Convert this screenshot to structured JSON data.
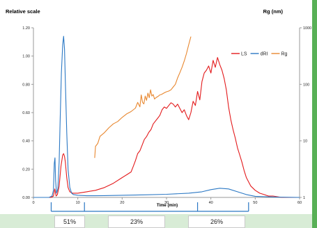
{
  "chart_data": {
    "type": "line",
    "title": "",
    "ylabel_left": "Relative scale",
    "ylabel_right": "Rg (nm)",
    "xlabel": "Time (min)",
    "xlim": [
      0,
      60
    ],
    "ylim": [
      0,
      1.2
    ],
    "y2lim": [
      1,
      1000
    ],
    "y2scale": "log",
    "x_ticks": [
      "0",
      "10",
      "20",
      "30",
      "40",
      "50",
      "60"
    ],
    "y_ticks": [
      "0.00",
      "0.20",
      "0.40",
      "0.60",
      "0.80",
      "1.00",
      "1.20"
    ],
    "y2_ticks": [
      "1",
      "10",
      "100",
      "1000"
    ],
    "grid": false,
    "legend_position": "top-right",
    "colors": {
      "LS": "#e31a1c",
      "dRI": "#2b78c4",
      "Rg": "#e8872f",
      "bracket": "#2b78c4"
    },
    "series": [
      {
        "name": "LS",
        "axis": "left",
        "x": [
          0,
          4,
          4.5,
          4.8,
          5.1,
          5.4,
          5.8,
          6.2,
          6.6,
          6.8,
          7.0,
          7.2,
          7.5,
          7.8,
          8.2,
          8.8,
          10,
          12,
          14,
          16,
          18,
          20,
          21,
          22,
          22.5,
          23,
          23.5,
          24,
          24.5,
          25,
          25.5,
          26,
          26.5,
          27,
          27.5,
          28,
          28.5,
          29,
          29.5,
          30,
          30.5,
          31,
          31.5,
          32,
          32.5,
          33,
          33.5,
          34,
          34.5,
          35,
          35.5,
          36,
          36.5,
          37,
          37.5,
          38,
          38.5,
          39,
          39.5,
          40,
          40.5,
          41,
          41.5,
          42,
          42.5,
          43,
          43.5,
          44,
          44.5,
          45,
          45.5,
          46,
          46.5,
          47,
          47.5,
          48,
          48.5,
          49,
          50,
          51,
          52,
          53,
          54,
          55,
          56,
          58,
          60
        ],
        "y": [
          0,
          0,
          0.01,
          0.06,
          0.01,
          0.02,
          0.08,
          0.22,
          0.3,
          0.31,
          0.29,
          0.25,
          0.14,
          0.07,
          0.04,
          0.03,
          0.03,
          0.04,
          0.05,
          0.07,
          0.1,
          0.14,
          0.16,
          0.18,
          0.22,
          0.26,
          0.31,
          0.33,
          0.37,
          0.41,
          0.43,
          0.46,
          0.48,
          0.52,
          0.54,
          0.56,
          0.58,
          0.62,
          0.64,
          0.63,
          0.65,
          0.67,
          0.66,
          0.64,
          0.66,
          0.63,
          0.6,
          0.62,
          0.58,
          0.55,
          0.6,
          0.68,
          0.65,
          0.75,
          0.69,
          0.82,
          0.88,
          0.9,
          0.93,
          0.88,
          0.97,
          0.92,
          0.99,
          0.94,
          0.9,
          0.84,
          0.76,
          0.64,
          0.55,
          0.48,
          0.42,
          0.35,
          0.3,
          0.25,
          0.19,
          0.14,
          0.11,
          0.08,
          0.05,
          0.03,
          0.02,
          0.01,
          0.01,
          0.005,
          0,
          0,
          0
        ]
      },
      {
        "name": "dRI",
        "axis": "left",
        "x": [
          0,
          3.5,
          4.2,
          4.5,
          4.7,
          4.85,
          5.0,
          5.2,
          5.5,
          5.8,
          6.0,
          6.3,
          6.6,
          6.8,
          7.0,
          7.2,
          7.5,
          7.8,
          8.2,
          8.6,
          9,
          10,
          12,
          14,
          16,
          18,
          20,
          25,
          30,
          35,
          38,
          40,
          42,
          44,
          46,
          48,
          50,
          55,
          60
        ],
        "y": [
          0,
          0,
          0.01,
          0.05,
          0.24,
          0.28,
          0.12,
          0.03,
          0.06,
          0.25,
          0.52,
          0.88,
          1.08,
          1.14,
          1.05,
          0.82,
          0.46,
          0.2,
          0.07,
          0.03,
          0.02,
          0.015,
          0.012,
          0.012,
          0.013,
          0.014,
          0.015,
          0.018,
          0.022,
          0.03,
          0.04,
          0.055,
          0.065,
          0.06,
          0.04,
          0.02,
          0.008,
          0.002,
          0
        ]
      },
      {
        "name": "Rg",
        "axis": "right",
        "x": [
          13.8,
          14,
          14.5,
          15,
          16,
          17,
          18,
          19,
          20,
          21,
          22,
          23,
          23.5,
          24,
          24.3,
          24.6,
          24.9,
          25.2,
          25.5,
          25.8,
          26.1,
          26.4,
          26.7,
          27,
          27.3,
          27.6,
          27.9,
          28.2,
          28.5,
          28.8,
          29.1,
          29.4,
          29.7,
          30,
          30.5,
          31,
          31.5,
          32,
          32.5,
          33,
          33.5,
          34,
          34.5,
          35,
          35.5
        ],
        "y": [
          5,
          8,
          9,
          12,
          14,
          17,
          20,
          22,
          26,
          30,
          33,
          38,
          48,
          40,
          65,
          48,
          45,
          62,
          52,
          70,
          58,
          80,
          62,
          66,
          55,
          58,
          60,
          62,
          65,
          66,
          68,
          70,
          72,
          74,
          76,
          80,
          90,
          100,
          130,
          160,
          200,
          260,
          350,
          500,
          700
        ]
      }
    ],
    "annotations": {
      "brackets_x": [
        4.0,
        11.5,
        37.0,
        48.5
      ],
      "percentages": [
        "51%",
        "23%",
        "26%"
      ]
    }
  }
}
